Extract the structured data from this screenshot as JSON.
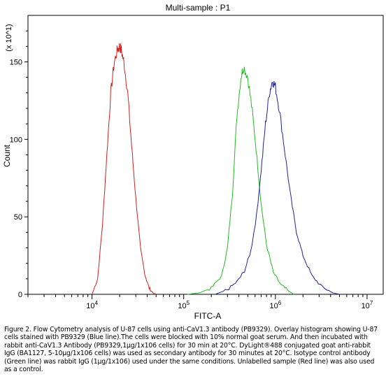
{
  "chart_data": {
    "type": "histogram",
    "title": "Multi-sample : P1",
    "xlabel": "FITC-A",
    "ylabel": "Count",
    "y_multiplier_label": "(x 10^1)",
    "x_scale": "log",
    "xlim": [
      2000,
      15000000
    ],
    "ylim": [
      0,
      180
    ],
    "x_ticks": [
      {
        "value": 10000,
        "base": "10",
        "exp": "4"
      },
      {
        "value": 100000,
        "base": "10",
        "exp": "5"
      },
      {
        "value": 1000000,
        "base": "10",
        "exp": "6"
      },
      {
        "value": 10000000,
        "base": "10",
        "exp": "7"
      }
    ],
    "y_ticks": [
      0,
      50,
      100,
      150
    ],
    "series": [
      {
        "color": "#cc2222",
        "x": [
          10000,
          11500,
          13000,
          14500,
          16000,
          17500,
          19000,
          20000,
          21000,
          22500,
          24500,
          27000,
          30000,
          34000,
          38000,
          42000,
          46000,
          50000
        ],
        "y": [
          0,
          10,
          45,
          90,
          130,
          150,
          158,
          160,
          157,
          148,
          130,
          96,
          62,
          28,
          12,
          4,
          1,
          0
        ]
      },
      {
        "color": "#22bb22",
        "x": [
          110000,
          150000,
          200000,
          260000,
          300000,
          340000,
          380000,
          420000,
          450000,
          500000,
          560000,
          630000,
          700000,
          800000,
          950000,
          1150000,
          1400000,
          1600000
        ],
        "y": [
          0,
          1,
          4,
          12,
          30,
          65,
          115,
          140,
          147,
          140,
          118,
          88,
          58,
          32,
          14,
          6,
          2,
          0
        ]
      },
      {
        "color": "#22229a",
        "x": [
          220000,
          300000,
          380000,
          460000,
          540000,
          620000,
          700000,
          780000,
          860000,
          930000,
          1000000,
          1100000,
          1250000,
          1450000,
          1700000,
          2000000,
          2500000,
          3200000,
          4200000,
          5000000
        ],
        "y": [
          0,
          3,
          8,
          15,
          28,
          50,
          80,
          110,
          130,
          138,
          134,
          120,
          95,
          65,
          40,
          25,
          12,
          5,
          1,
          0
        ]
      }
    ],
    "grid": false,
    "legend": "none"
  },
  "caption": "Figure 2. Flow Cytometry analysis of U-87 cells using anti-CaV1.3 antibody (PB9329). Overlay histogram showing U-87 cells stained with PB9329 (Blue line).The cells were blocked with 10% normal goat serum. And then incubated with rabbit anti-CaV1.3 Antibody (PB9329,1μg/1x106 cells) for 30 min at 20°C. DyLight®488 conjugated goat anti-rabbit IgG (BA1127, 5-10μg/1x106 cells) was used as secondary antibody for 30 minutes at 20°C. Isotype control antibody (Green line) was rabbit IgG (1μg/1x106) used under the same conditions. Unlabelled sample (Red line) was also used as a control."
}
